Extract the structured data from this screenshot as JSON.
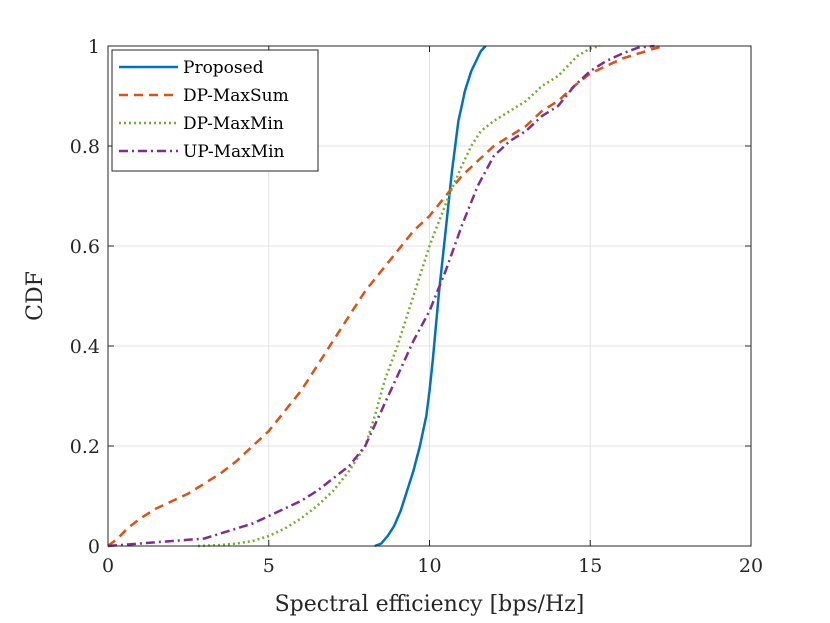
{
  "chart_data": {
    "type": "line",
    "title": "",
    "xlabel": "Spectral efficiency [bps/Hz]",
    "ylabel": "CDF",
    "xlim": [
      0,
      20
    ],
    "ylim": [
      0,
      1
    ],
    "xticks": [
      0,
      5,
      10,
      15,
      20
    ],
    "yticks": [
      0,
      0.2,
      0.4,
      0.6,
      0.8,
      1
    ],
    "xtick_labels": [
      "0",
      "5",
      "10",
      "15",
      "20"
    ],
    "ytick_labels": [
      "0",
      "0.2",
      "0.4",
      "0.6",
      "0.8",
      "1"
    ],
    "grid": true,
    "legend_position": "top-left",
    "series": [
      {
        "name": "Proposed",
        "color": "#0072BD",
        "dash": "solid",
        "x": [
          8.3,
          8.5,
          8.7,
          8.9,
          9.1,
          9.3,
          9.5,
          9.7,
          9.9,
          10.0,
          10.1,
          10.2,
          10.3,
          10.4,
          10.5,
          10.6,
          10.7,
          10.8,
          10.9,
          11.0,
          11.1,
          11.2,
          11.3,
          11.45,
          11.6,
          11.7,
          11.75
        ],
        "y": [
          0.0,
          0.005,
          0.02,
          0.04,
          0.07,
          0.11,
          0.15,
          0.2,
          0.26,
          0.31,
          0.37,
          0.44,
          0.51,
          0.57,
          0.63,
          0.69,
          0.75,
          0.8,
          0.85,
          0.88,
          0.91,
          0.93,
          0.95,
          0.97,
          0.99,
          0.997,
          1.0
        ]
      },
      {
        "name": "DP-MaxSum",
        "color": "#D95319",
        "dash": "dashed",
        "x": [
          0.0,
          0.3,
          0.6,
          1.0,
          1.5,
          2.0,
          2.5,
          3.0,
          3.5,
          4.0,
          4.5,
          5.0,
          5.5,
          6.0,
          6.5,
          7.0,
          7.5,
          8.0,
          8.5,
          9.0,
          9.5,
          10.0,
          10.5,
          11.0,
          11.5,
          12.0,
          12.5,
          13.0,
          13.5,
          14.0,
          14.5,
          15.0,
          15.5,
          16.0,
          16.5,
          17.0,
          17.3
        ],
        "y": [
          0.0,
          0.015,
          0.035,
          0.055,
          0.075,
          0.09,
          0.105,
          0.125,
          0.145,
          0.17,
          0.2,
          0.23,
          0.27,
          0.31,
          0.36,
          0.41,
          0.46,
          0.51,
          0.55,
          0.59,
          0.63,
          0.66,
          0.7,
          0.74,
          0.77,
          0.8,
          0.82,
          0.84,
          0.87,
          0.89,
          0.92,
          0.945,
          0.96,
          0.975,
          0.985,
          0.995,
          1.0
        ]
      },
      {
        "name": "DP-MaxMin",
        "color": "#77AC30",
        "dash": "dotted",
        "x": [
          2.8,
          3.5,
          4.0,
          4.5,
          5.0,
          5.5,
          6.0,
          6.5,
          7.0,
          7.5,
          8.0,
          8.3,
          8.6,
          9.0,
          9.3,
          9.6,
          10.0,
          10.3,
          10.6,
          11.0,
          11.3,
          11.6,
          12.0,
          12.5,
          13.0,
          13.5,
          14.0,
          14.3,
          14.6,
          15.0,
          15.3
        ],
        "y": [
          0.0,
          0.002,
          0.005,
          0.01,
          0.02,
          0.035,
          0.055,
          0.08,
          0.11,
          0.15,
          0.2,
          0.26,
          0.33,
          0.4,
          0.46,
          0.52,
          0.6,
          0.65,
          0.7,
          0.76,
          0.8,
          0.83,
          0.85,
          0.87,
          0.89,
          0.92,
          0.94,
          0.96,
          0.98,
          0.995,
          1.0
        ]
      },
      {
        "name": "UP-MaxMin",
        "color": "#7E2F8E",
        "dash": "dashdot",
        "x": [
          0.0,
          1.0,
          2.0,
          3.0,
          3.5,
          4.0,
          4.5,
          5.0,
          5.5,
          6.0,
          6.5,
          7.0,
          7.5,
          8.0,
          8.5,
          9.0,
          9.5,
          10.0,
          10.5,
          11.0,
          11.5,
          12.0,
          12.5,
          13.0,
          13.5,
          14.0,
          14.5,
          15.0,
          15.5,
          16.0,
          16.5,
          17.0
        ],
        "y": [
          0.0,
          0.005,
          0.01,
          0.015,
          0.025,
          0.035,
          0.045,
          0.06,
          0.075,
          0.09,
          0.11,
          0.135,
          0.16,
          0.2,
          0.27,
          0.34,
          0.41,
          0.47,
          0.55,
          0.64,
          0.72,
          0.78,
          0.81,
          0.83,
          0.86,
          0.88,
          0.92,
          0.95,
          0.97,
          0.985,
          0.997,
          1.0
        ]
      }
    ]
  }
}
